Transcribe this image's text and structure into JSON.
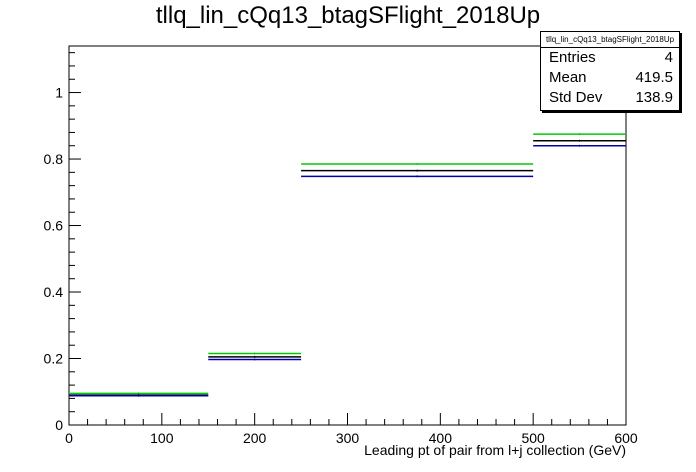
{
  "chart_data": {
    "type": "histogram",
    "title": "tllq_lin_cQq13_btagSFlight_2018Up",
    "xlabel": "Leading pt of pair from l+j collection (GeV)",
    "ylabel": "",
    "xlim": [
      0,
      600
    ],
    "ylim": [
      0,
      1.14
    ],
    "xticks": [
      "0",
      "100",
      "200",
      "300",
      "400",
      "500",
      "600"
    ],
    "yticks": [
      "0",
      "0.2",
      "0.4",
      "0.6",
      "0.8",
      "1"
    ],
    "bin_edges": [
      0,
      150,
      250,
      500,
      600
    ],
    "series": [
      {
        "color": "#00cc00",
        "values": [
          0.095,
          0.215,
          0.785,
          0.875
        ]
      },
      {
        "color": "#000000",
        "values": [
          0.09,
          0.205,
          0.765,
          0.855
        ]
      },
      {
        "color": "#0000aa",
        "values": [
          0.088,
          0.197,
          0.748,
          0.84
        ]
      }
    ],
    "stats": {
      "title": "tllq_lin_cQq13_btagSFlight_2018Up",
      "rows": [
        {
          "label": "Entries",
          "value": "4"
        },
        {
          "label": "Mean",
          "value": "419.5"
        },
        {
          "label": "Std Dev",
          "value": "138.9"
        }
      ]
    }
  }
}
